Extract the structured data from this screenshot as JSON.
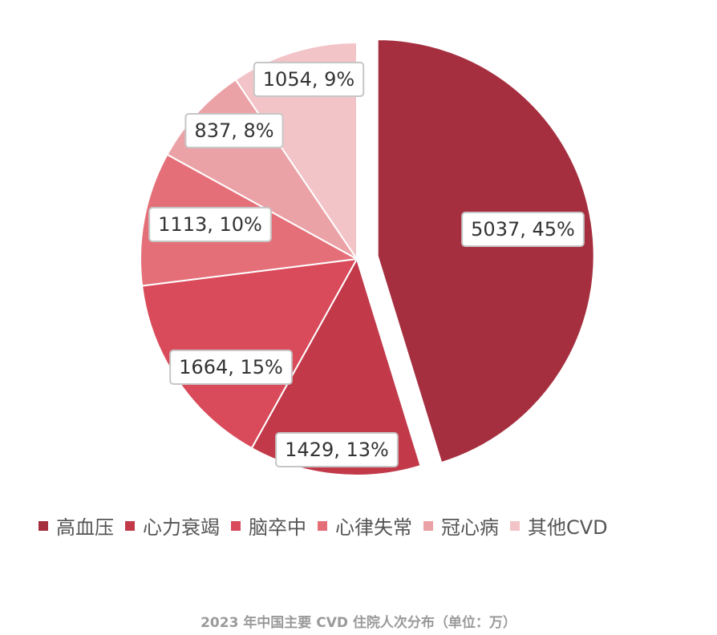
{
  "chart_data": {
    "type": "pie",
    "title": "",
    "caption": "2023 年中国主要 CVD 住院人次分布（单位：万）",
    "slices": [
      {
        "name": "高血压",
        "value": 5037,
        "label": "5037, 45%",
        "color": "#a52f3f"
      },
      {
        "name": "心力衰竭",
        "value": 1429,
        "label": "1429, 13%",
        "color": "#c23a4a"
      },
      {
        "name": "脑卒中",
        "value": 1664,
        "label": "1664, 15%",
        "color": "#d94a5a"
      },
      {
        "name": "心律失常",
        "value": 1113,
        "label": "1113, 10%",
        "color": "#e56f78"
      },
      {
        "name": "冠心病",
        "value": 837,
        "label": "837, 8%",
        "color": "#eba2a6"
      },
      {
        "name": "其他CVD",
        "value": 1054,
        "label": "1054, 9%",
        "color": "#f2c4c8"
      }
    ],
    "exploded_slice": "高血压",
    "legend_position": "bottom"
  }
}
